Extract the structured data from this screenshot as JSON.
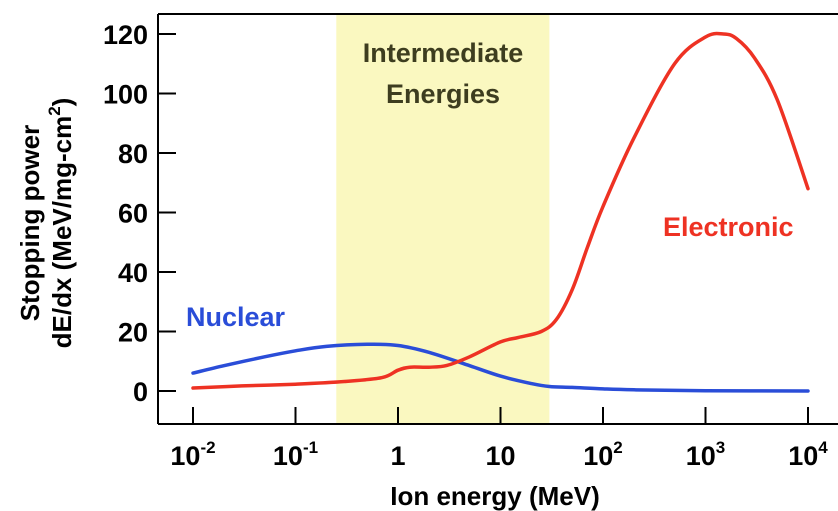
{
  "chart_data": {
    "type": "line",
    "xlabel": "Ion energy (MeV)",
    "ylabel_line1": "Stopping power",
    "ylabel_line2": "dE/dx (MeV/mg-cm",
    "ylabel_sup": "2",
    "ylabel_close": ")",
    "x_scale": "log",
    "xlim": [
      0.01,
      10000
    ],
    "ylim": [
      -10,
      125
    ],
    "x_ticks": [
      {
        "value": 0.01,
        "base": "10",
        "exp": "-2"
      },
      {
        "value": 0.1,
        "base": "10",
        "exp": "-1"
      },
      {
        "value": 1,
        "base": "1",
        "exp": ""
      },
      {
        "value": 10,
        "base": "10",
        "exp": ""
      },
      {
        "value": 100,
        "base": "10",
        "exp": "2"
      },
      {
        "value": 1000,
        "base": "10",
        "exp": "3"
      },
      {
        "value": 10000,
        "base": "10",
        "exp": "4"
      }
    ],
    "y_ticks": [
      0,
      20,
      40,
      60,
      80,
      100,
      120
    ],
    "band": {
      "label_line1": "Intermediate",
      "label_line2": "Energies",
      "x_range": [
        0.25,
        30
      ],
      "color": "#faf8c0"
    },
    "series": [
      {
        "name": "Nuclear",
        "color": "#2a4dd8",
        "x": [
          0.01,
          0.02,
          0.05,
          0.1,
          0.2,
          0.5,
          1,
          2,
          5,
          10,
          20,
          30,
          50,
          100,
          200,
          1000,
          10000
        ],
        "y": [
          6,
          8.5,
          11.5,
          13.5,
          15,
          15.7,
          15.3,
          13,
          8.5,
          5,
          2.5,
          1.5,
          1.2,
          0.7,
          0.4,
          0.1,
          0
        ]
      },
      {
        "name": "Electronic",
        "color": "#ee3223",
        "x": [
          0.01,
          0.03,
          0.1,
          0.3,
          0.7,
          1,
          1.3,
          2,
          3,
          5,
          10,
          15,
          25,
          35,
          50,
          70,
          100,
          200,
          500,
          1000,
          1500,
          2000,
          3000,
          5000,
          10000
        ],
        "y": [
          1,
          1.7,
          2.3,
          3.2,
          4.5,
          7,
          8,
          8,
          8.6,
          11.5,
          16.5,
          18,
          20,
          24,
          34,
          48,
          62,
          85,
          110,
          119,
          120,
          118.5,
          112,
          98,
          68
        ]
      }
    ]
  }
}
